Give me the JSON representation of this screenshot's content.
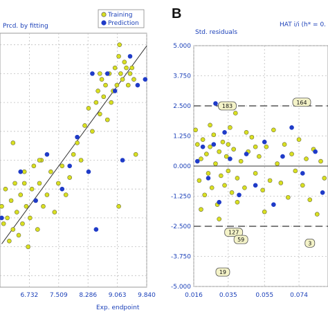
{
  "chart_data": [
    {
      "type": "scatter",
      "title": "",
      "ylabel": "Pred. by fitting",
      "xlabel": "Exp. endpoint",
      "xlim": [
        5.955,
        9.84
      ],
      "ylim": [
        5.8,
        10.2
      ],
      "x_ticks": [
        "6.732",
        "7.509",
        "8.286",
        "9.063",
        "9.840"
      ],
      "grid": true,
      "legend": {
        "position": "top-right",
        "entries": [
          "Training",
          "Prediction"
        ]
      },
      "colors": {
        "training": "#d9e021",
        "prediction": "#1f3bc8"
      },
      "fit_line": {
        "x": [
          6.0,
          9.84
        ],
        "y": [
          6.55,
          9.98
        ]
      },
      "series": [
        {
          "name": "Training",
          "points": [
            [
              6.0,
              7.2
            ],
            [
              6.05,
              6.9
            ],
            [
              6.1,
              7.5
            ],
            [
              6.15,
              7.0
            ],
            [
              6.2,
              6.6
            ],
            [
              6.25,
              7.3
            ],
            [
              6.3,
              6.8
            ],
            [
              6.35,
              7.6
            ],
            [
              6.4,
              7.1
            ],
            [
              6.45,
              6.7
            ],
            [
              6.5,
              7.4
            ],
            [
              6.55,
              6.9
            ],
            [
              6.6,
              7.8
            ],
            [
              6.65,
              7.2
            ],
            [
              6.7,
              6.5
            ],
            [
              6.75,
              7.0
            ],
            [
              6.8,
              7.5
            ],
            [
              6.85,
              7.9
            ],
            [
              6.9,
              7.3
            ],
            [
              6.95,
              6.8
            ],
            [
              7.0,
              7.6
            ],
            [
              7.05,
              8.0
            ],
            [
              7.1,
              7.2
            ],
            [
              7.2,
              7.4
            ],
            [
              7.3,
              7.8
            ],
            [
              7.4,
              7.1
            ],
            [
              7.5,
              7.6
            ],
            [
              7.6,
              7.9
            ],
            [
              7.7,
              7.4
            ],
            [
              7.8,
              7.7
            ],
            [
              7.9,
              8.1
            ],
            [
              8.0,
              8.3
            ],
            [
              8.1,
              8.0
            ],
            [
              8.2,
              8.6
            ],
            [
              8.3,
              8.9
            ],
            [
              8.4,
              8.5
            ],
            [
              8.5,
              9.0
            ],
            [
              8.55,
              9.2
            ],
            [
              8.6,
              8.8
            ],
            [
              8.65,
              9.4
            ],
            [
              8.7,
              9.1
            ],
            [
              8.75,
              9.3
            ],
            [
              8.8,
              8.7
            ],
            [
              8.85,
              9.5
            ],
            [
              8.9,
              9.0
            ],
            [
              8.95,
              9.2
            ],
            [
              9.0,
              9.6
            ],
            [
              9.05,
              9.3
            ],
            [
              9.1,
              9.8
            ],
            [
              9.12,
              10.0
            ],
            [
              9.15,
              9.5
            ],
            [
              9.2,
              9.4
            ],
            [
              9.25,
              9.7
            ],
            [
              9.3,
              9.6
            ],
            [
              9.35,
              9.3
            ],
            [
              9.4,
              9.5
            ],
            [
              9.45,
              9.6
            ],
            [
              9.5,
              9.4
            ],
            [
              9.55,
              8.1
            ],
            [
              9.1,
              7.2
            ],
            [
              6.3,
              8.3
            ],
            [
              6.6,
              7.6
            ],
            [
              7.0,
              8.0
            ],
            [
              8.6,
              9.5
            ]
          ]
        },
        {
          "name": "Prediction",
          "points": [
            [
              6.0,
              7.0
            ],
            [
              6.5,
              7.8
            ],
            [
              6.9,
              7.3
            ],
            [
              7.2,
              8.1
            ],
            [
              7.6,
              7.5
            ],
            [
              8.0,
              8.4
            ],
            [
              8.3,
              7.8
            ],
            [
              8.5,
              6.8
            ],
            [
              8.8,
              9.5
            ],
            [
              9.0,
              9.2
            ],
            [
              9.2,
              8.0
            ],
            [
              9.4,
              9.8
            ],
            [
              9.6,
              9.3
            ],
            [
              9.8,
              9.4
            ],
            [
              8.4,
              9.5
            ],
            [
              7.8,
              7.9
            ]
          ]
        }
      ]
    },
    {
      "type": "scatter",
      "title": "",
      "ylabel": "Std. residuals",
      "xlabel": "",
      "corner_label": "HAT i/i (h* = 0.",
      "xlim": [
        0.016,
        0.09
      ],
      "ylim": [
        -5.0,
        5.0
      ],
      "x_ticks": [
        "0.016",
        "0.035",
        "0.055",
        "0.074"
      ],
      "y_ticks": [
        "5.000",
        "3.750",
        "2.500",
        "1.250",
        "0.000",
        "-1.250",
        "-2.500",
        "-3.750",
        "-5.000"
      ],
      "grid": true,
      "limits": {
        "upper": 2.5,
        "lower": -2.5,
        "zero": 0.0
      },
      "colors": {
        "training": "#d9e021",
        "prediction": "#1f3bc8"
      },
      "point_labels": [
        {
          "text": "183",
          "x": 0.0345,
          "y": 2.5
        },
        {
          "text": "164",
          "x": 0.0755,
          "y": 2.65
        },
        {
          "text": "127",
          "x": 0.038,
          "y": -2.75
        },
        {
          "text": "59",
          "x": 0.042,
          "y": -3.05
        },
        {
          "text": "3",
          "x": 0.08,
          "y": -3.2
        },
        {
          "text": "19",
          "x": 0.032,
          "y": -4.4
        }
      ],
      "series": [
        {
          "name": "Training",
          "points": [
            [
              0.017,
              1.5
            ],
            [
              0.018,
              0.9
            ],
            [
              0.019,
              -0.6
            ],
            [
              0.02,
              0.3
            ],
            [
              0.021,
              1.1
            ],
            [
              0.022,
              -1.2
            ],
            [
              0.023,
              0.5
            ],
            [
              0.024,
              -0.3
            ],
            [
              0.025,
              0.8
            ],
            [
              0.026,
              -0.9
            ],
            [
              0.027,
              1.3
            ],
            [
              0.028,
              0.1
            ],
            [
              0.029,
              -1.6
            ],
            [
              0.03,
              0.6
            ],
            [
              0.031,
              -0.4
            ],
            [
              0.032,
              1.0
            ],
            [
              0.033,
              -0.8
            ],
            [
              0.034,
              0.4
            ],
            [
              0.035,
              -0.2
            ],
            [
              0.036,
              1.6
            ],
            [
              0.037,
              -1.1
            ],
            [
              0.038,
              0.7
            ],
            [
              0.039,
              2.2
            ],
            [
              0.04,
              -0.5
            ],
            [
              0.042,
              0.2
            ],
            [
              0.044,
              -0.9
            ],
            [
              0.046,
              0.6
            ],
            [
              0.048,
              1.2
            ],
            [
              0.05,
              -0.3
            ],
            [
              0.052,
              0.4
            ],
            [
              0.054,
              -1.0
            ],
            [
              0.056,
              0.8
            ],
            [
              0.058,
              -0.6
            ],
            [
              0.06,
              1.5
            ],
            [
              0.062,
              0.1
            ],
            [
              0.064,
              -0.7
            ],
            [
              0.066,
              0.9
            ],
            [
              0.068,
              -1.3
            ],
            [
              0.07,
              0.5
            ],
            [
              0.072,
              -0.2
            ],
            [
              0.074,
              1.1
            ],
            [
              0.076,
              -0.8
            ],
            [
              0.078,
              0.3
            ],
            [
              0.08,
              -1.4
            ],
            [
              0.082,
              0.7
            ],
            [
              0.084,
              -2.0
            ],
            [
              0.086,
              0.2
            ],
            [
              0.088,
              -0.5
            ],
            [
              0.02,
              -1.8
            ],
            [
              0.025,
              1.7
            ],
            [
              0.03,
              -2.2
            ],
            [
              0.035,
              0.9
            ],
            [
              0.04,
              -1.5
            ],
            [
              0.045,
              1.4
            ],
            [
              0.05,
              0.8
            ],
            [
              0.055,
              -1.9
            ]
          ]
        },
        {
          "name": "Prediction",
          "points": [
            [
              0.018,
              0.2
            ],
            [
              0.021,
              0.8
            ],
            [
              0.024,
              -0.5
            ],
            [
              0.027,
              0.9
            ],
            [
              0.03,
              -1.5
            ],
            [
              0.033,
              1.4
            ],
            [
              0.036,
              0.3
            ],
            [
              0.041,
              -1.2
            ],
            [
              0.045,
              0.5
            ],
            [
              0.05,
              -0.8
            ],
            [
              0.055,
              1.0
            ],
            [
              0.06,
              -1.6
            ],
            [
              0.065,
              0.4
            ],
            [
              0.07,
              1.6
            ],
            [
              0.076,
              -0.3
            ],
            [
              0.083,
              0.6
            ],
            [
              0.087,
              -1.1
            ],
            [
              0.028,
              2.6
            ]
          ]
        }
      ]
    }
  ],
  "panels": {
    "b_letter": "B"
  },
  "legend": {
    "training": "Training",
    "prediction": "Prediction"
  },
  "labels": {
    "a_ylabel": "Prcd. by fitting",
    "a_xlabel": "Exp. endpoint",
    "b_ylabel": "Std. residuals",
    "b_corner": "HAT i/i (h* = 0."
  }
}
